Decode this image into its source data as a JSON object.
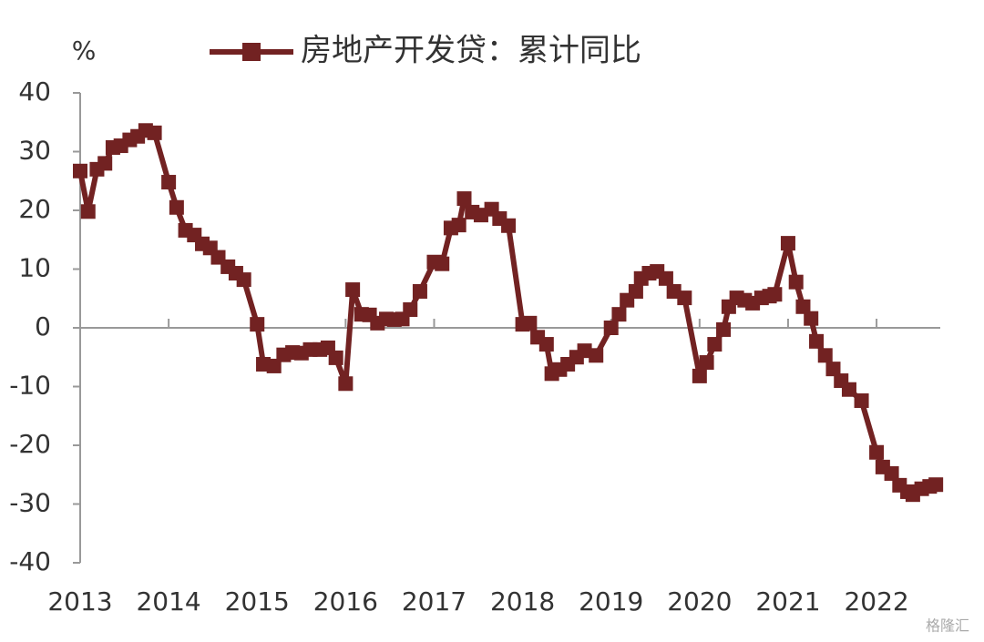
{
  "chart_data": {
    "type": "line",
    "y_label": "%",
    "watermark": "格隆汇",
    "x": [
      2013.0,
      2013.09,
      2013.19,
      2013.28,
      2013.37,
      2013.46,
      2013.56,
      2013.65,
      2013.74,
      2013.84,
      2014.0,
      2014.09,
      2014.19,
      2014.29,
      2014.38,
      2014.47,
      2014.56,
      2014.67,
      2014.76,
      2014.85,
      2015.0,
      2015.07,
      2015.19,
      2015.3,
      2015.4,
      2015.5,
      2015.6,
      2015.71,
      2015.8,
      2015.89,
      2016.0,
      2016.08,
      2016.18,
      2016.27,
      2016.36,
      2016.46,
      2016.55,
      2016.64,
      2016.73,
      2016.84,
      2017.0,
      2017.09,
      2017.19,
      2017.28,
      2017.34,
      2017.43,
      2017.53,
      2017.65,
      2017.74,
      2017.84,
      2018.0,
      2018.08,
      2018.17,
      2018.27,
      2018.33,
      2018.42,
      2018.51,
      2018.61,
      2018.7,
      2018.83,
      2019.0,
      2019.09,
      2019.18,
      2019.28,
      2019.34,
      2019.43,
      2019.52,
      2019.62,
      2019.71,
      2019.83,
      2020.0,
      2020.08,
      2020.17,
      2020.27,
      2020.33,
      2020.42,
      2020.51,
      2020.6,
      2020.7,
      2020.79,
      2020.85,
      2021.0,
      2021.09,
      2021.17,
      2021.26,
      2021.32,
      2021.42,
      2021.51,
      2021.6,
      2021.69,
      2021.83,
      2022.0,
      2022.07,
      2022.17,
      2022.26,
      2022.35,
      2022.41,
      2022.51,
      2022.6,
      2022.67
    ],
    "series": [
      {
        "name": "房地产开发贷：累计同比",
        "color": "#722222",
        "values": [
          26.7,
          19.8,
          27,
          28,
          30.7,
          31,
          32,
          32.6,
          33.6,
          33.2,
          24.8,
          20.5,
          16.6,
          15.8,
          14.3,
          13.6,
          12,
          10.4,
          9.3,
          8.2,
          0.6,
          -6.2,
          -6.5,
          -4.6,
          -4.2,
          -4.3,
          -3.7,
          -3.7,
          -3.4,
          -5.1,
          -9.5,
          6.5,
          2.3,
          2.2,
          0.8,
          1.5,
          1.4,
          1.5,
          3.1,
          6.2,
          11.2,
          10.9,
          17,
          17.5,
          22,
          19.7,
          19.2,
          20.2,
          18.6,
          17.4,
          0.6,
          0.8,
          -1.6,
          -2.8,
          -7.8,
          -7.1,
          -6.2,
          -5,
          -3.9,
          -4.7,
          0,
          2.3,
          4.7,
          6.2,
          8.4,
          9.3,
          9.6,
          8.4,
          6.2,
          5.1,
          -8.2,
          -5.9,
          -2.8,
          -0.3,
          3.6,
          5.1,
          4.7,
          4.2,
          5.1,
          5.4,
          5.7,
          14.4,
          7.8,
          3.6,
          1.6,
          -2.3,
          -4.7,
          -7,
          -9,
          -10.5,
          -12.4,
          -21.2,
          -23.7,
          -24.8,
          -26.8,
          -27.9,
          -28.4,
          -27.4,
          -27,
          -26.7
        ]
      }
    ],
    "xlim": [
      2013,
      2022.72
    ],
    "xticks": [
      2013,
      2014,
      2015,
      2016,
      2017,
      2018,
      2019,
      2020,
      2021,
      2022
    ],
    "ylim": [
      -40,
      40
    ],
    "yticks": [
      -40,
      -30,
      -20,
      -10,
      0,
      10,
      20,
      30,
      40
    ],
    "legend": "top"
  }
}
